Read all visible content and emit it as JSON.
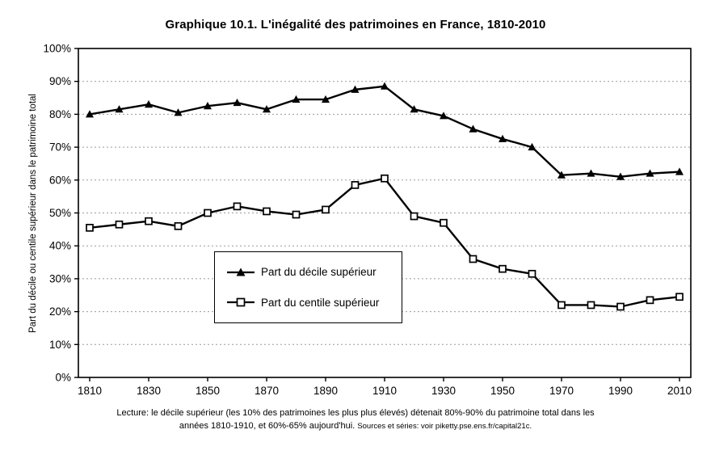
{
  "header": {
    "title": "Graphique 10.1. L'inégalité des patrimoines en France, 1810-2010"
  },
  "axes": {
    "y_label": "Part du décile ou centile supérieur dans le patrimoine total"
  },
  "legend": {
    "decile_label": "Part du décile supérieur",
    "centile_label": "Part du centile supérieur"
  },
  "caption": {
    "line1": "Lecture: le décile supérieur (les 10% des patrimoines les plus plus élevés) détenait 80%-90% du patrimoine total dans les",
    "line2_main": "années 1810-1910, et 60%-65% aujourd'hui. ",
    "line2_sources": "Sources et séries: voir piketty.pse.ens.fr/capital21c."
  },
  "chart_data": {
    "type": "line",
    "title": "Graphique 10.1. L'inégalité des patrimoines en France, 1810-2010",
    "xlabel": "",
    "ylabel": "Part du décile ou centile supérieur dans le patrimoine total",
    "x": [
      1810,
      1820,
      1830,
      1840,
      1850,
      1860,
      1870,
      1880,
      1890,
      1900,
      1910,
      1920,
      1930,
      1940,
      1950,
      1960,
      1970,
      1980,
      1990,
      2000,
      2010
    ],
    "series": [
      {
        "name": "Part du décile supérieur",
        "marker": "triangle",
        "values": [
          80,
          81.5,
          83,
          80.5,
          82.5,
          83.5,
          81.5,
          84.5,
          84.5,
          87.5,
          88.5,
          81.5,
          79.5,
          75.5,
          72.5,
          70,
          61.5,
          62,
          61,
          62,
          62.5
        ]
      },
      {
        "name": "Part du centile supérieur",
        "marker": "square",
        "values": [
          45.5,
          46.5,
          47.5,
          46,
          50,
          52,
          50.5,
          49.5,
          51,
          58.5,
          60.5,
          49,
          47,
          36,
          33,
          31.5,
          22,
          22,
          21.5,
          23.5,
          24.5
        ]
      }
    ],
    "ylim": [
      0,
      100
    ],
    "ytick_step": 10,
    "ytick_format": "percent",
    "xticks": [
      1810,
      1830,
      1850,
      1870,
      1890,
      1910,
      1930,
      1950,
      1970,
      1990,
      2010
    ],
    "grid": "horizontal-dashed",
    "line_color": "#000000",
    "legend_position": "inside-center-left"
  }
}
